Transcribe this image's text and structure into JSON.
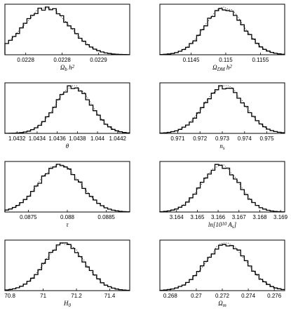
{
  "chart_data": [
    {
      "type": "histogram",
      "xlabel": "Ω_b h^2",
      "xlabel_parts": [
        [
          "t",
          "Ω"
        ],
        [
          "sub",
          "b"
        ],
        [
          "t",
          " h"
        ],
        [
          "sup",
          "2"
        ]
      ],
      "xticks": [
        "0.0228",
        "0.0228",
        "0.0229"
      ],
      "xtick_values": [
        0.02276,
        0.02283,
        0.0229
      ],
      "xlim": [
        0.02272,
        0.02296
      ],
      "mean": 0.0228,
      "sigma": 4.5e-05
    },
    {
      "type": "histogram",
      "xlabel": "Ω_DM h^2",
      "xlabel_parts": [
        [
          "t",
          "Ω"
        ],
        [
          "sub",
          "DM"
        ],
        [
          "t",
          " h"
        ],
        [
          "sup",
          "2"
        ]
      ],
      "xticks": [
        "0.1145",
        "0.115",
        "0.1155"
      ],
      "xtick_values": [
        0.1145,
        0.115,
        0.1155
      ],
      "xlim": [
        0.11405,
        0.11585
      ],
      "mean": 0.11498,
      "sigma": 0.00028
    },
    {
      "type": "histogram",
      "xlabel": "θ",
      "xlabel_parts": [
        [
          "t",
          "θ"
        ]
      ],
      "xticks": [
        "1.0432",
        "1.0434",
        "1.0436",
        "1.0438",
        "1.044",
        "1.0442"
      ],
      "xtick_values": [
        1.0432,
        1.0434,
        1.0436,
        1.0438,
        1.044,
        1.0442
      ],
      "xlim": [
        1.04308,
        1.04432
      ],
      "mean": 1.04376,
      "sigma": 0.00018
    },
    {
      "type": "histogram",
      "xlabel": "n_s",
      "xlabel_parts": [
        [
          "t",
          "n"
        ],
        [
          "sub",
          "s"
        ]
      ],
      "xticks": [
        "0.971",
        "0.972",
        "0.973",
        "0.974",
        "0.975"
      ],
      "xtick_values": [
        0.971,
        0.972,
        0.973,
        0.974,
        0.975
      ],
      "xlim": [
        0.9702,
        0.9758
      ],
      "mean": 0.9731,
      "sigma": 0.0009
    },
    {
      "type": "histogram",
      "xlabel": "τ",
      "xlabel_parts": [
        [
          "t",
          "τ"
        ]
      ],
      "xticks": [
        "0.0875",
        "0.088",
        "0.0885"
      ],
      "xtick_values": [
        0.0875,
        0.088,
        0.0885
      ],
      "xlim": [
        0.0872,
        0.0888
      ],
      "mean": 0.0879,
      "sigma": 0.00027
    },
    {
      "type": "histogram",
      "xlabel": "ln[10^10 A_s]",
      "xlabel_parts": [
        [
          "t",
          "ln[10"
        ],
        [
          "sup",
          "10"
        ],
        [
          "t",
          " A"
        ],
        [
          "sub",
          "s"
        ],
        [
          "t",
          "]"
        ]
      ],
      "xticks": [
        "3.164",
        "3.165",
        "3.166",
        "3.167",
        "3.168",
        "3.169"
      ],
      "xtick_values": [
        3.164,
        3.165,
        3.166,
        3.167,
        3.168,
        3.169
      ],
      "xlim": [
        3.1632,
        3.1692
      ],
      "mean": 3.1661,
      "sigma": 0.0009
    },
    {
      "type": "histogram",
      "xlabel": "H_0",
      "xlabel_parts": [
        [
          "t",
          "H"
        ],
        [
          "sub",
          "0"
        ]
      ],
      "xticks": [
        "70.8",
        "71",
        "71.2",
        "71.4"
      ],
      "xtick_values": [
        70.8,
        71.0,
        71.2,
        71.4
      ],
      "xlim": [
        70.77,
        71.52
      ],
      "mean": 71.13,
      "sigma": 0.12
    },
    {
      "type": "histogram",
      "xlabel": "Ω_m",
      "xlabel_parts": [
        [
          "t",
          "Ω"
        ],
        [
          "sub",
          "m"
        ]
      ],
      "xticks": [
        "0.268",
        "0.27",
        "0.272",
        "0.274",
        "0.276"
      ],
      "xtick_values": [
        0.268,
        0.27,
        0.272,
        0.274,
        0.276
      ],
      "xlim": [
        0.2672,
        0.2768
      ],
      "mean": 0.2723,
      "sigma": 0.0016
    }
  ]
}
